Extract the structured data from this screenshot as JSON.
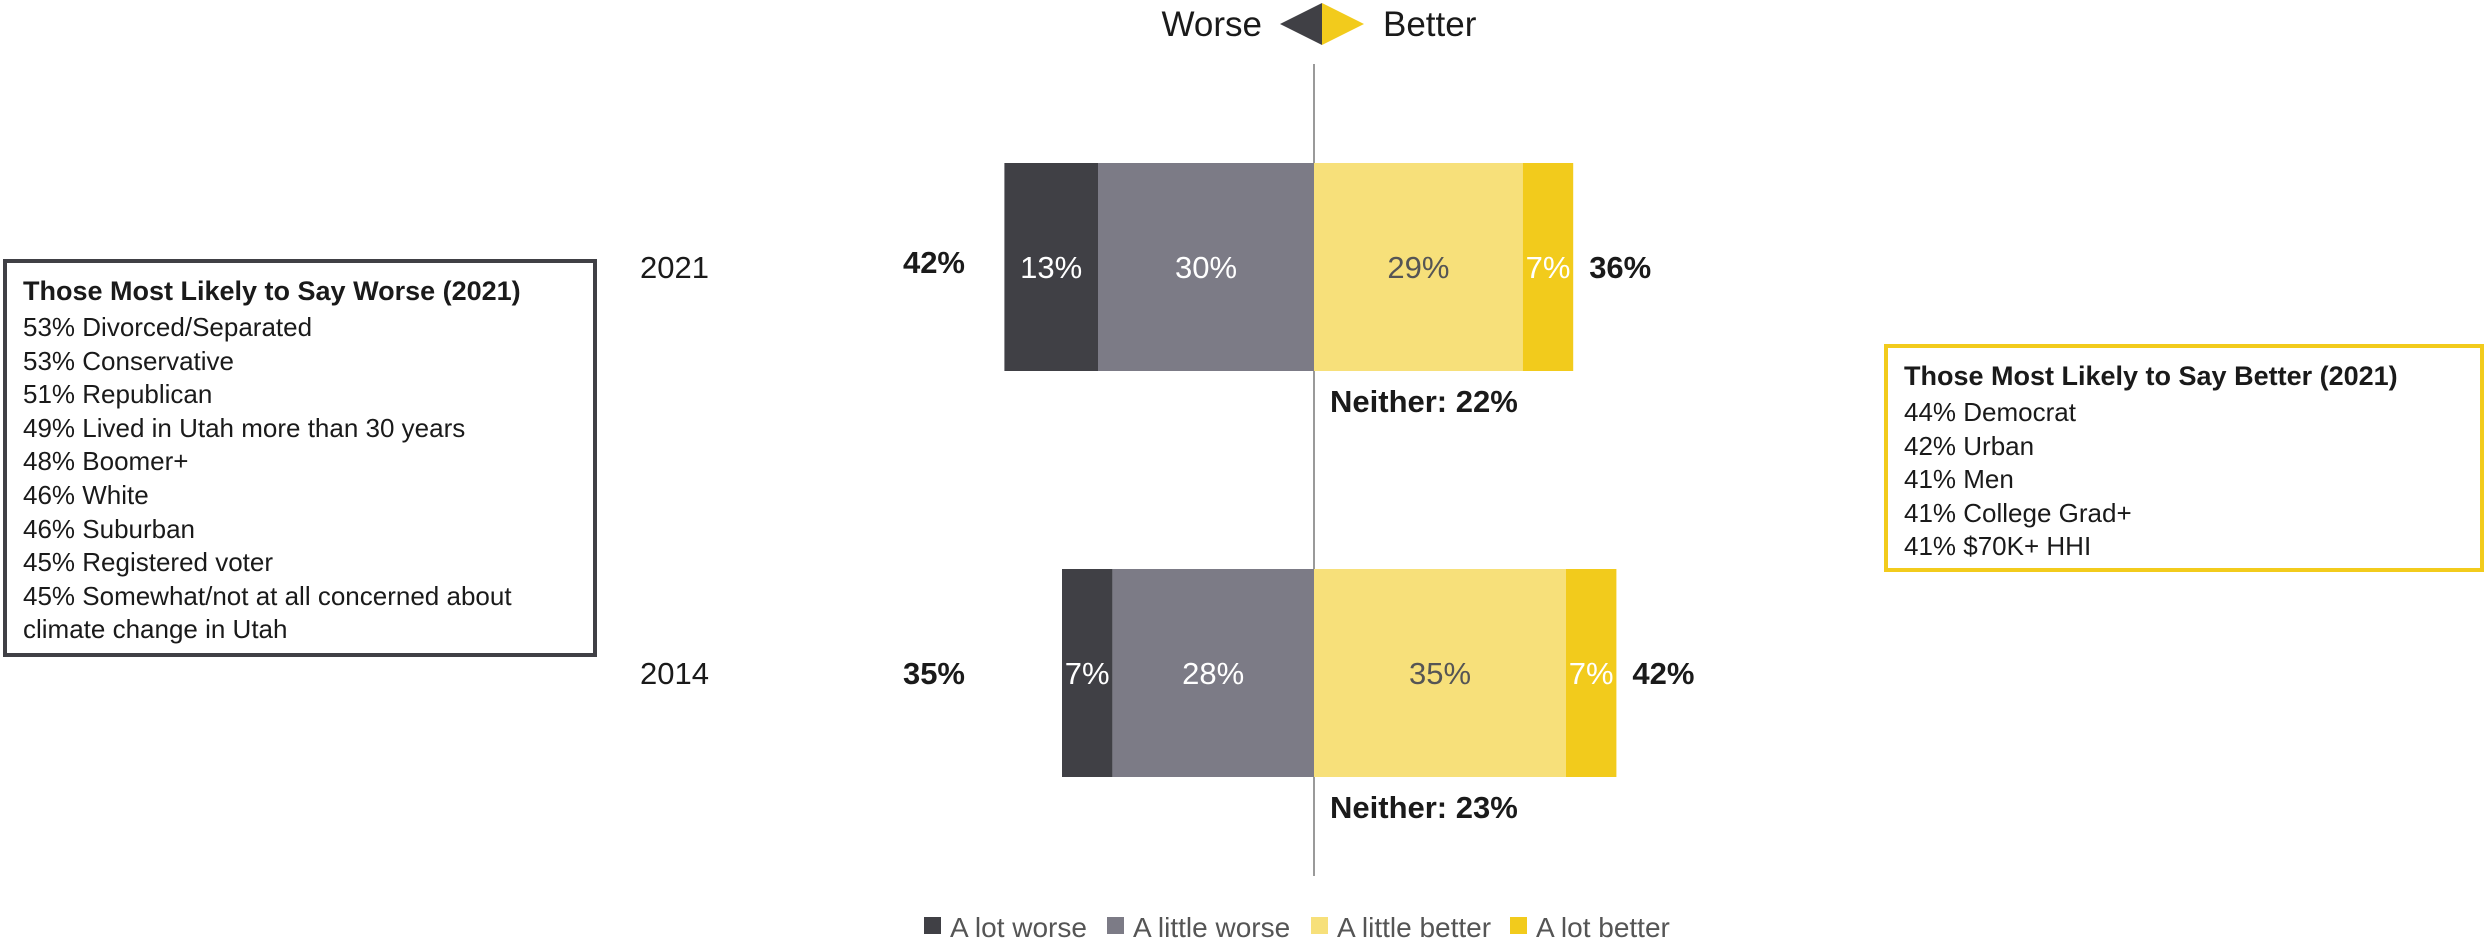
{
  "chart_data": {
    "type": "bar",
    "orientation": "horizontal",
    "stacked": "diverging",
    "header": {
      "left_label": "Worse",
      "right_label": "Better"
    },
    "categories": [
      "2021",
      "2014"
    ],
    "series": [
      {
        "name": "A lot worse",
        "side": "worse",
        "color": "#404045",
        "text_color": "#ffffff",
        "values": [
          13,
          7
        ]
      },
      {
        "name": "A little worse",
        "side": "worse",
        "color": "#7c7b86",
        "text_color": "#ffffff",
        "values": [
          30,
          28
        ]
      },
      {
        "name": "A little better",
        "side": "better",
        "color": "#f7e07a",
        "text_color": "#555555",
        "values": [
          29,
          35
        ]
      },
      {
        "name": "A lot better",
        "side": "better",
        "color": "#f2cb1c",
        "text_color": "#ffffff",
        "values": [
          7,
          7
        ]
      }
    ],
    "totals_worse": [
      "42%",
      "35%"
    ],
    "totals_better": [
      "36%",
      "42%"
    ],
    "neither": [
      "Neither: 22%",
      "Neither: 23%"
    ],
    "legend_position": "bottom",
    "grid": false
  },
  "callouts": {
    "worse": {
      "title": "Those Most Likely to Say Worse (2021)",
      "items": [
        "53% Divorced/Separated",
        "53% Conservative",
        "51% Republican",
        "49% Lived in Utah more than 30 years",
        "48% Boomer+",
        "46% White",
        "46% Suburban",
        "45% Registered voter",
        "45% Somewhat/not at all concerned about",
        "climate change in Utah"
      ]
    },
    "better": {
      "title": "Those Most Likely to Say Better (2021)",
      "items": [
        "44% Democrat",
        "42% Urban",
        "41% Men",
        "41% College Grad+",
        "41% $70K+ HHI"
      ]
    }
  },
  "colors": {
    "divider": "#9a9a9a",
    "worse_accent": "#404045",
    "better_accent": "#f2cb1c"
  }
}
